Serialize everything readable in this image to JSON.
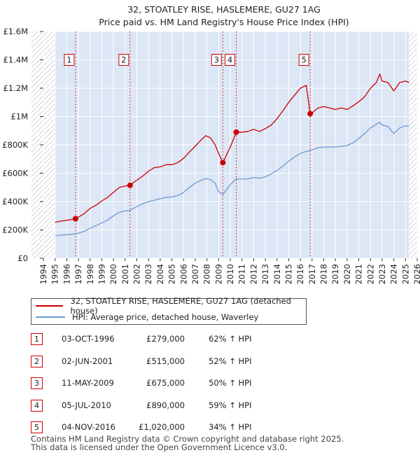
{
  "chart_data": {
    "type": "line",
    "title": "32, STOATLEY RISE, HASLEMERE, GU27 1AG",
    "subtitle": "Price paid vs. HM Land Registry's House Price Index (HPI)",
    "ylim": [
      0,
      1600000
    ],
    "xlim": [
      1994,
      2026
    ],
    "y_tick_values": [
      0,
      200000,
      400000,
      600000,
      800000,
      1000000,
      1200000,
      1400000,
      1600000
    ],
    "y_tick_labels": [
      "£0",
      "£200K",
      "£400K",
      "£600K",
      "£800K",
      "£1M",
      "£1.2M",
      "£1.4M",
      "£1.6M"
    ],
    "x_tick_labels": [
      "1994",
      "1995",
      "1996",
      "1997",
      "1998",
      "1999",
      "2000",
      "2001",
      "2002",
      "2003",
      "2004",
      "2005",
      "2006",
      "2007",
      "2008",
      "2009",
      "2010",
      "2011",
      "2012",
      "2013",
      "2014",
      "2015",
      "2016",
      "2017",
      "2018",
      "2019",
      "2020",
      "2021",
      "2022",
      "2023",
      "2024",
      "2025",
      "2026"
    ],
    "data_range": [
      1995.0,
      2025.3
    ],
    "series": [
      {
        "name": "32, STOATLEY RISE, HASLEMERE, GU27 1AG (detached house)",
        "color": "#cc0000",
        "points": [
          [
            1995.0,
            255000
          ],
          [
            1995.5,
            262000
          ],
          [
            1996.0,
            268000
          ],
          [
            1996.75,
            279000
          ],
          [
            1997.5,
            315000
          ],
          [
            1998.0,
            352000
          ],
          [
            1998.5,
            375000
          ],
          [
            1999.0,
            405000
          ],
          [
            1999.5,
            430000
          ],
          [
            2000.0,
            465000
          ],
          [
            2000.5,
            500000
          ],
          [
            2001.0,
            510000
          ],
          [
            2001.42,
            515000
          ],
          [
            2001.8,
            540000
          ],
          [
            2002.5,
            580000
          ],
          [
            2003.0,
            615000
          ],
          [
            2003.5,
            640000
          ],
          [
            2004.0,
            645000
          ],
          [
            2004.5,
            660000
          ],
          [
            2005.0,
            660000
          ],
          [
            2005.5,
            675000
          ],
          [
            2006.0,
            705000
          ],
          [
            2006.5,
            750000
          ],
          [
            2007.0,
            790000
          ],
          [
            2007.5,
            835000
          ],
          [
            2007.9,
            865000
          ],
          [
            2008.3,
            850000
          ],
          [
            2008.7,
            800000
          ],
          [
            2009.0,
            740000
          ],
          [
            2009.36,
            675000
          ],
          [
            2009.6,
            715000
          ],
          [
            2010.0,
            785000
          ],
          [
            2010.51,
            890000
          ],
          [
            2011.0,
            890000
          ],
          [
            2011.5,
            895000
          ],
          [
            2012.0,
            910000
          ],
          [
            2012.5,
            895000
          ],
          [
            2013.0,
            915000
          ],
          [
            2013.5,
            940000
          ],
          [
            2014.0,
            985000
          ],
          [
            2014.5,
            1040000
          ],
          [
            2015.0,
            1100000
          ],
          [
            2015.5,
            1150000
          ],
          [
            2016.0,
            1200000
          ],
          [
            2016.5,
            1220000
          ],
          [
            2016.84,
            1020000
          ],
          [
            2017.0,
            1025000
          ],
          [
            2017.5,
            1060000
          ],
          [
            2018.0,
            1070000
          ],
          [
            2018.5,
            1060000
          ],
          [
            2019.0,
            1050000
          ],
          [
            2019.5,
            1060000
          ],
          [
            2020.0,
            1050000
          ],
          [
            2020.5,
            1075000
          ],
          [
            2021.0,
            1105000
          ],
          [
            2021.5,
            1140000
          ],
          [
            2022.0,
            1200000
          ],
          [
            2022.5,
            1240000
          ],
          [
            2022.8,
            1300000
          ],
          [
            2023.0,
            1250000
          ],
          [
            2023.5,
            1240000
          ],
          [
            2024.0,
            1180000
          ],
          [
            2024.5,
            1240000
          ],
          [
            2025.0,
            1250000
          ],
          [
            2025.3,
            1240000
          ]
        ]
      },
      {
        "name": "HPI: Average price, detached house, Waverley",
        "color": "#6a9bd1",
        "points": [
          [
            1995.0,
            160000
          ],
          [
            1995.5,
            163000
          ],
          [
            1996.0,
            167000
          ],
          [
            1996.75,
            172000
          ],
          [
            1997.5,
            190000
          ],
          [
            1998.0,
            212000
          ],
          [
            1998.5,
            230000
          ],
          [
            1999.0,
            250000
          ],
          [
            1999.5,
            270000
          ],
          [
            2000.0,
            300000
          ],
          [
            2000.5,
            325000
          ],
          [
            2001.0,
            335000
          ],
          [
            2001.42,
            338000
          ],
          [
            2002.0,
            365000
          ],
          [
            2002.5,
            385000
          ],
          [
            2003.0,
            400000
          ],
          [
            2003.5,
            410000
          ],
          [
            2004.0,
            420000
          ],
          [
            2004.5,
            430000
          ],
          [
            2005.0,
            433000
          ],
          [
            2005.5,
            442000
          ],
          [
            2006.0,
            465000
          ],
          [
            2006.5,
            500000
          ],
          [
            2007.0,
            530000
          ],
          [
            2007.5,
            550000
          ],
          [
            2007.9,
            562000
          ],
          [
            2008.3,
            555000
          ],
          [
            2008.7,
            530000
          ],
          [
            2009.0,
            470000
          ],
          [
            2009.36,
            450000
          ],
          [
            2009.7,
            485000
          ],
          [
            2010.0,
            520000
          ],
          [
            2010.51,
            560000
          ],
          [
            2011.0,
            560000
          ],
          [
            2011.5,
            560000
          ],
          [
            2012.0,
            570000
          ],
          [
            2012.5,
            565000
          ],
          [
            2013.0,
            575000
          ],
          [
            2013.5,
            595000
          ],
          [
            2014.0,
            620000
          ],
          [
            2014.5,
            650000
          ],
          [
            2015.0,
            685000
          ],
          [
            2015.5,
            715000
          ],
          [
            2016.0,
            740000
          ],
          [
            2016.5,
            755000
          ],
          [
            2016.84,
            760000
          ],
          [
            2017.0,
            765000
          ],
          [
            2017.5,
            780000
          ],
          [
            2018.0,
            785000
          ],
          [
            2018.5,
            785000
          ],
          [
            2019.0,
            785000
          ],
          [
            2019.5,
            790000
          ],
          [
            2020.0,
            795000
          ],
          [
            2020.5,
            815000
          ],
          [
            2021.0,
            845000
          ],
          [
            2021.5,
            880000
          ],
          [
            2022.0,
            920000
          ],
          [
            2022.5,
            945000
          ],
          [
            2022.8,
            960000
          ],
          [
            2023.0,
            940000
          ],
          [
            2023.5,
            930000
          ],
          [
            2024.0,
            880000
          ],
          [
            2024.5,
            920000
          ],
          [
            2025.0,
            935000
          ],
          [
            2025.3,
            930000
          ]
        ]
      }
    ],
    "sales": [
      {
        "n": "1",
        "x": 1996.75,
        "y": 279000,
        "date": "03-OCT-1996",
        "price": "£279,000",
        "hpi": "62% ↑ HPI"
      },
      {
        "n": "2",
        "x": 2001.42,
        "y": 515000,
        "date": "02-JUN-2001",
        "price": "£515,000",
        "hpi": "52% ↑ HPI"
      },
      {
        "n": "3",
        "x": 2009.36,
        "y": 675000,
        "date": "11-MAY-2009",
        "price": "£675,000",
        "hpi": "50% ↑ HPI"
      },
      {
        "n": "4",
        "x": 2010.51,
        "y": 890000,
        "date": "05-JUL-2010",
        "price": "£890,000",
        "hpi": "59% ↑ HPI"
      },
      {
        "n": "5",
        "x": 2016.84,
        "y": 1020000,
        "date": "04-NOV-2016",
        "price": "£1,020,000",
        "hpi": "34% ↑ HPI"
      }
    ],
    "colors": {
      "shade": "#dce6f5",
      "grid": "#ffffff",
      "vline": "#cc0000"
    }
  },
  "footer": {
    "line1": "Contains HM Land Registry data © Crown copyright and database right 2025.",
    "line2": "This data is licensed under the Open Government Licence v3.0."
  }
}
